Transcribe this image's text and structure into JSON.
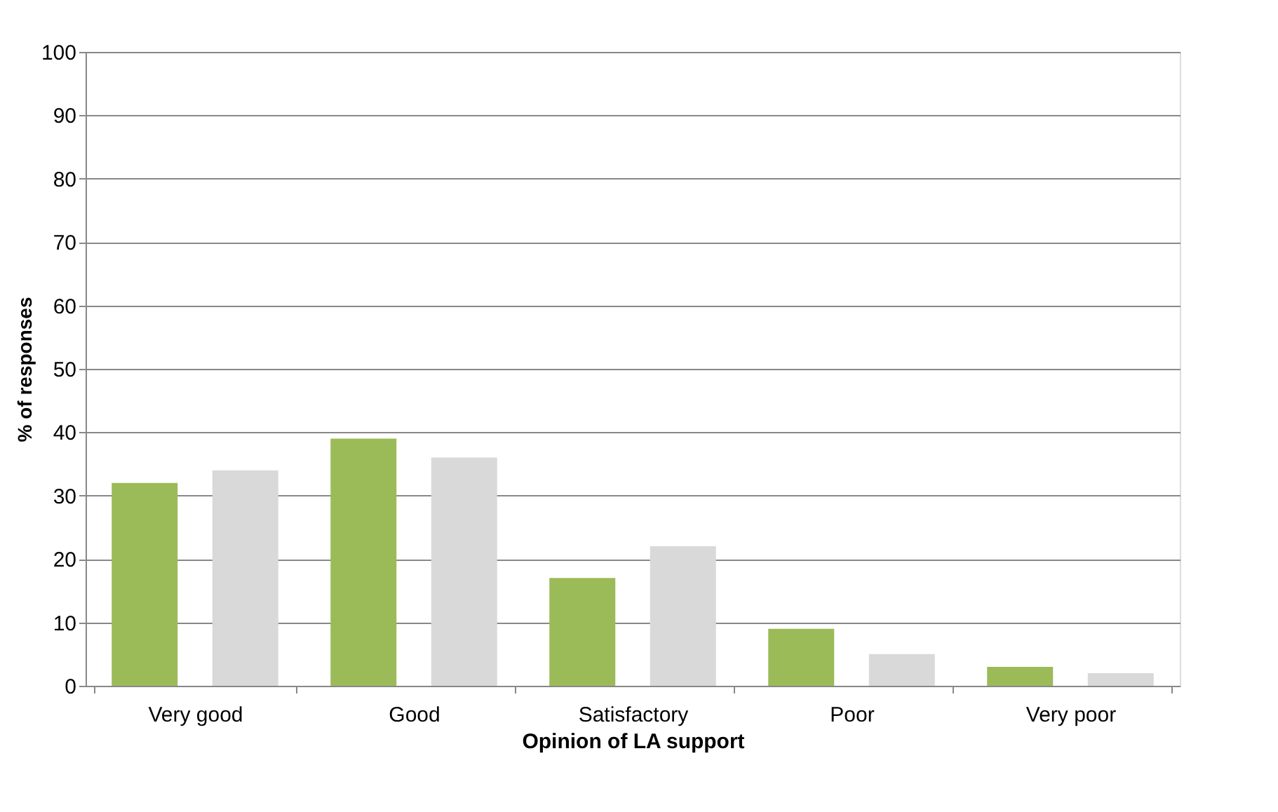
{
  "chart_data": {
    "type": "bar",
    "xlabel": "Opinion of LA support",
    "ylabel": "% of responses",
    "categories": [
      "Very good",
      "Good",
      "Satisfactory",
      "Poor",
      "Very poor"
    ],
    "series": [
      {
        "color": "#9bbb59",
        "values": [
          32,
          39,
          17,
          9,
          3
        ]
      },
      {
        "color": "#d9d9d9",
        "values": [
          34,
          36,
          22,
          5,
          2
        ]
      }
    ],
    "ylim": [
      0,
      100
    ],
    "yticks": [
      0,
      10,
      20,
      30,
      40,
      50,
      60,
      70,
      80,
      90,
      100
    ],
    "grid": "y",
    "legend": false
  }
}
